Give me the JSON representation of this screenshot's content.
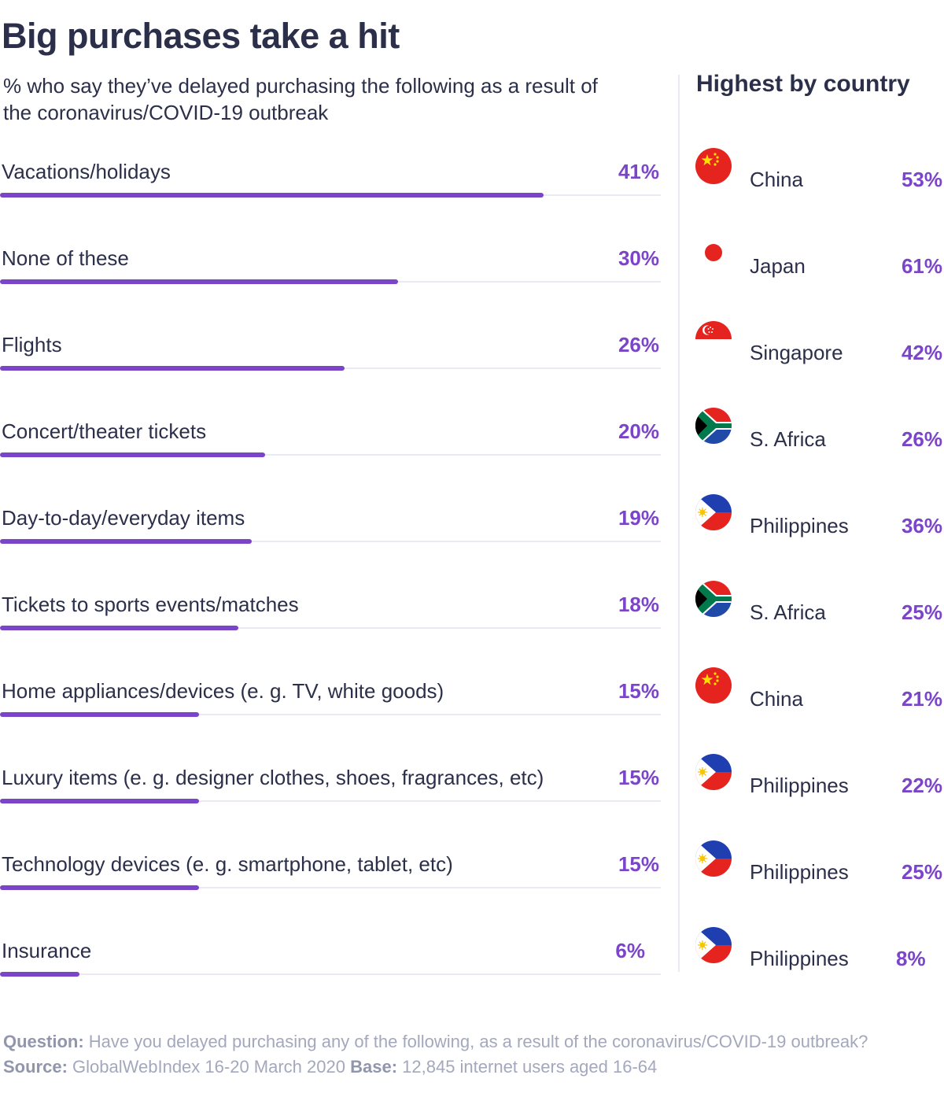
{
  "header": {
    "title": "Big purchases take a hit",
    "subtitle": "% who say they’ve delayed purchasing the following as a result of the coronavirus/COVID-19 outbreak",
    "side_title": "Highest by country"
  },
  "colors": {
    "accent": "#7b45c9",
    "text": "#2b2f4a",
    "track": "#e8ebf3",
    "muted": "#a3a8bd"
  },
  "chart_data": {
    "type": "bar",
    "orientation": "horizontal",
    "title": "Big purchases take a hit",
    "subtitle": "% who say they’ve delayed purchasing the following as a result of the coronavirus/COVID-19 outbreak",
    "xlim": [
      0,
      50
    ],
    "categories": [
      "Vacations/holidays",
      "None of these",
      "Flights",
      "Concert/theater tickets",
      "Day-to-day/everyday items",
      "Tickets to sports events/matches",
      "Home appliances/devices (e. g. TV, white goods)",
      "Luxury items (e. g. designer clothes, shoes, fragrances, etc)",
      "Technology devices (e. g. smartphone, tablet, etc)",
      "Insurance"
    ],
    "values": [
      41,
      30,
      26,
      20,
      19,
      18,
      15,
      15,
      15,
      6
    ],
    "value_labels": [
      "41%",
      "30%",
      "26%",
      "20%",
      "19%",
      "18%",
      "15%",
      "15%",
      "15%",
      "6%"
    ],
    "highest_by_country": [
      {
        "country": "China",
        "flag": "china-flag-icon",
        "value": 53,
        "label": "53%"
      },
      {
        "country": "Japan",
        "flag": "japan-flag-icon",
        "value": 61,
        "label": "61%"
      },
      {
        "country": "Singapore",
        "flag": "singapore-flag-icon",
        "value": 42,
        "label": "42%"
      },
      {
        "country": "S. Africa",
        "flag": "south-africa-flag-icon",
        "value": 26,
        "label": "26%"
      },
      {
        "country": "Philippines",
        "flag": "philippines-flag-icon",
        "value": 36,
        "label": "36%"
      },
      {
        "country": "S. Africa",
        "flag": "south-africa-flag-icon",
        "value": 25,
        "label": "25%"
      },
      {
        "country": "China",
        "flag": "china-flag-icon",
        "value": 21,
        "label": "21%"
      },
      {
        "country": "Philippines",
        "flag": "philippines-flag-icon",
        "value": 22,
        "label": "22%"
      },
      {
        "country": "Philippines",
        "flag": "philippines-flag-icon",
        "value": 25,
        "label": "25%"
      },
      {
        "country": "Philippines",
        "flag": "philippines-flag-icon",
        "value": 8,
        "label": "8%"
      }
    ]
  },
  "footnote": {
    "question_label": "Question:",
    "question_text": "Have you delayed purchasing any of the following, as a result of the coronavirus/COVID-19 outbreak?",
    "source_label": "Source:",
    "source_text": "GlobalWebIndex 16-20 March 2020",
    "base_label": "Base:",
    "base_text": "12,845 internet users aged 16-64"
  }
}
